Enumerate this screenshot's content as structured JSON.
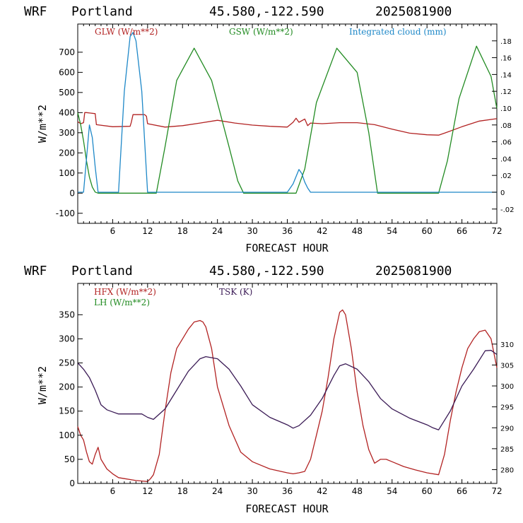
{
  "chart_data": [
    {
      "type": "line",
      "header": {
        "model": "WRF",
        "location": "Portland",
        "coords": "45.580,-122.590",
        "run": "2025081900"
      },
      "xlabel": "FORECAST HOUR",
      "ylabel": "W/m**2",
      "xlim": [
        0,
        72
      ],
      "ylim": [
        -150,
        840
      ],
      "y2lim": [
        -0.037,
        0.2
      ],
      "x_ticks": [
        6,
        12,
        18,
        24,
        30,
        36,
        42,
        48,
        54,
        60,
        66,
        72
      ],
      "y_ticks": [
        -100,
        0,
        100,
        200,
        300,
        400,
        500,
        600,
        700
      ],
      "y_tick_labels": [
        "-100",
        "0",
        "100",
        "200",
        "300",
        "400",
        "500",
        "600",
        "700"
      ],
      "y2_ticks": [
        -0.02,
        0,
        0.02,
        0.04,
        0.06,
        0.08,
        0.1,
        0.12,
        0.14,
        0.16,
        0.18
      ],
      "y2_tick_labels": [
        "-.02",
        "0",
        ".02",
        ".04",
        ".06",
        ".08",
        ".10",
        ".12",
        ".14",
        ".16",
        ".18"
      ],
      "series": [
        {
          "name": "GLW (W/m**2)",
          "axis": "left",
          "color": "#b22222",
          "x": [
            0,
            0.5,
            1,
            1.2,
            1.5,
            3,
            3.2,
            6,
            9,
            9.2,
            9.5,
            11.5,
            11.8,
            12,
            15,
            18,
            21,
            24,
            27,
            30,
            33,
            36,
            37,
            37.5,
            38,
            39,
            39.5,
            40,
            42,
            45,
            48,
            51,
            54,
            57,
            60,
            62,
            63,
            66,
            69,
            72
          ],
          "y": [
            355,
            345,
            350,
            400,
            400,
            395,
            340,
            330,
            332,
            352,
            390,
            390,
            382,
            345,
            328,
            335,
            348,
            362,
            348,
            338,
            332,
            328,
            352,
            372,
            352,
            368,
            335,
            348,
            345,
            350,
            350,
            340,
            318,
            298,
            290,
            288,
            298,
            330,
            358,
            370
          ]
        },
        {
          "name": "GSW (W/m**2)",
          "axis": "left",
          "color": "#228b22",
          "x": [
            0,
            0.5,
            1,
            1.5,
            2,
            2.5,
            3,
            3.5,
            13.5,
            15,
            17,
            20,
            23,
            26,
            27.5,
            28.5,
            37.5,
            39,
            41,
            44.5,
            48,
            50,
            51.5,
            62,
            63.5,
            65.5,
            68.5,
            71,
            72
          ],
          "y": [
            400,
            340,
            260,
            160,
            80,
            30,
            5,
            0,
            0,
            230,
            560,
            720,
            560,
            230,
            60,
            0,
            0,
            120,
            450,
            720,
            600,
            300,
            0,
            0,
            160,
            470,
            730,
            580,
            420
          ]
        },
        {
          "name": "Integrated cloud (mm)",
          "axis": "right",
          "color": "#1e88c8",
          "x": [
            0,
            1,
            1.5,
            2,
            2.5,
            3,
            3.5,
            7,
            8,
            9,
            9.5,
            10,
            11,
            12,
            29,
            36,
            37,
            38,
            38.5,
            39,
            39.5,
            40,
            41,
            72
          ],
          "y": [
            0,
            0,
            0.04,
            0.08,
            0.065,
            0.03,
            0,
            0,
            0.12,
            0.185,
            0.19,
            0.18,
            0.12,
            0,
            0,
            0,
            0.01,
            0.027,
            0.022,
            0.012,
            0.005,
            0,
            0,
            0
          ]
        }
      ]
    },
    {
      "type": "line",
      "header": {
        "model": "WRF",
        "location": "Portland",
        "coords": "45.580,-122.590",
        "run": "2025081900"
      },
      "xlabel": "FORECAST HOUR",
      "ylabel": "W/m**2",
      "xlim": [
        0,
        72
      ],
      "ylim": [
        0,
        415
      ],
      "y2lim": [
        276.7,
        324.5
      ],
      "x_ticks": [
        6,
        12,
        18,
        24,
        30,
        36,
        42,
        48,
        54,
        60,
        66,
        72
      ],
      "y_ticks": [
        0,
        50,
        100,
        150,
        200,
        250,
        300,
        350
      ],
      "y_tick_labels": [
        "0",
        "50",
        "100",
        "150",
        "200",
        "250",
        "300",
        "350"
      ],
      "y2_ticks": [
        280,
        285,
        290,
        295,
        300,
        305,
        310
      ],
      "y2_tick_labels": [
        "280",
        "285",
        "290",
        "295",
        "300",
        "305",
        "310"
      ],
      "series": [
        {
          "name": "HFX (W/m**2)",
          "axis": "left",
          "color": "#b22222",
          "x": [
            0,
            0.5,
            1,
            1.5,
            2,
            2.5,
            3,
            3.5,
            4,
            5,
            6,
            7,
            8,
            9,
            10,
            11,
            12,
            12.5,
            13,
            14,
            15,
            16,
            17,
            18,
            19,
            20,
            21,
            21.5,
            22,
            23,
            24,
            26,
            28,
            30,
            33,
            36,
            37,
            38,
            39,
            40,
            41,
            42,
            43,
            44,
            45,
            45.5,
            46,
            47,
            48,
            49,
            50,
            51,
            52,
            53,
            54,
            56,
            58,
            60,
            62,
            63,
            64,
            65,
            66,
            67,
            68,
            69,
            70,
            71,
            72
          ],
          "y": [
            118,
            100,
            90,
            65,
            45,
            40,
            60,
            75,
            50,
            30,
            20,
            12,
            10,
            8,
            6,
            5,
            4,
            10,
            18,
            60,
            150,
            230,
            280,
            300,
            320,
            335,
            338,
            335,
            325,
            280,
            200,
            120,
            65,
            45,
            30,
            22,
            20,
            22,
            25,
            50,
            100,
            150,
            220,
            300,
            355,
            360,
            350,
            280,
            190,
            120,
            70,
            42,
            50,
            50,
            45,
            35,
            28,
            22,
            18,
            60,
            130,
            190,
            240,
            280,
            300,
            315,
            318,
            300,
            240
          ]
        },
        {
          "name": "LH (W/m**2)",
          "axis": "left",
          "color": "#228b22",
          "x": [],
          "y": []
        },
        {
          "name": "TSK (K)",
          "axis": "right",
          "color": "#3a1a55",
          "x": [
            0,
            1,
            2,
            3,
            4,
            5,
            6,
            7,
            11,
            12,
            13,
            15,
            17,
            19,
            21,
            22,
            24,
            26,
            28,
            30,
            33,
            36,
            37,
            38,
            40,
            42,
            44,
            45,
            46,
            48,
            50,
            52,
            54,
            57,
            60,
            61,
            62,
            64,
            66,
            68,
            70,
            71,
            72
          ],
          "y": [
            305.5,
            304,
            302,
            299,
            295.5,
            294.3,
            293.8,
            293.3,
            293.3,
            292.5,
            292,
            294.5,
            299,
            303.5,
            306.5,
            307,
            306.5,
            304,
            300,
            295.5,
            292.5,
            290.7,
            289.9,
            290.5,
            293,
            297,
            302.5,
            304.8,
            305.3,
            304,
            301,
            297,
            294.5,
            292.3,
            290.7,
            290,
            289.5,
            294,
            300,
            304,
            308.4,
            308.5,
            307.5
          ]
        }
      ]
    }
  ]
}
